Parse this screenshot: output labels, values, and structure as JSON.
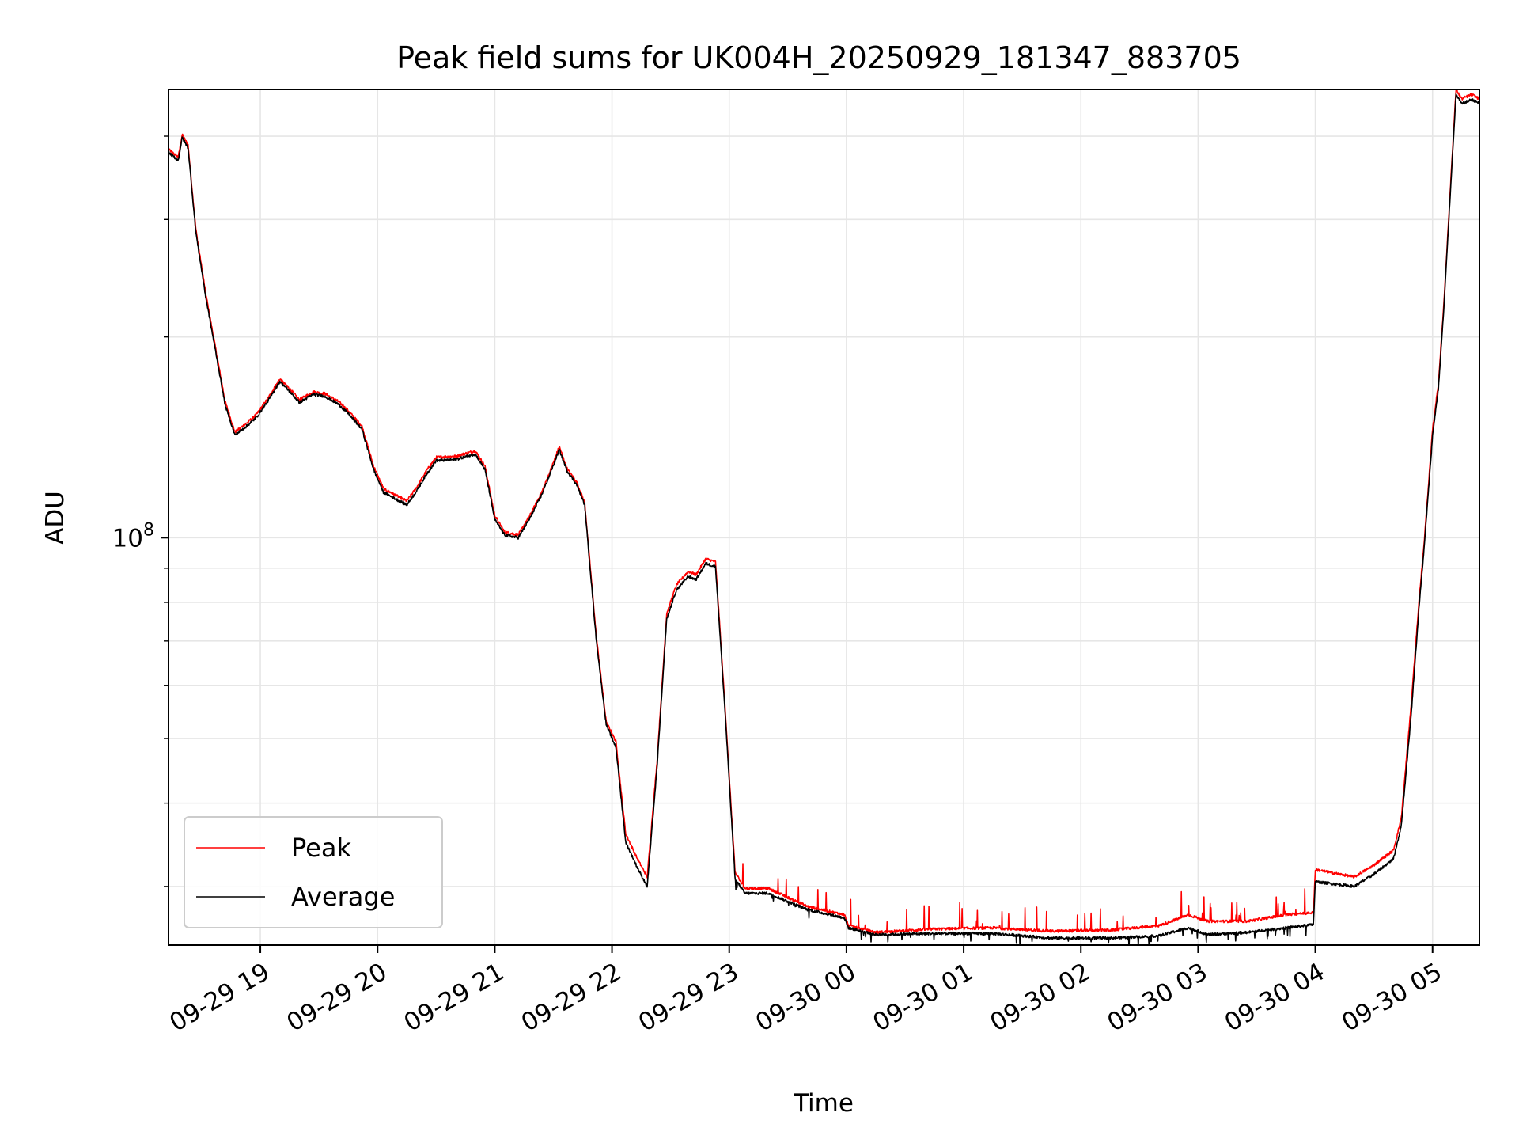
{
  "chart_data": {
    "type": "line",
    "title": "Peak field sums for UK004H_20250929_181347_883705",
    "xlabel": "Time",
    "ylabel": "ADU",
    "yscale": "log",
    "ylim": [
      24500000,
      470000000
    ],
    "xlim": [
      "2025-09-29 18:13",
      "2025-09-30 05:24"
    ],
    "grid": true,
    "legend_position": "lower-left",
    "x_ticks": [
      {
        "t": "2025-09-29 19:00",
        "label": "09-29 19"
      },
      {
        "t": "2025-09-29 20:00",
        "label": "09-29 20"
      },
      {
        "t": "2025-09-29 21:00",
        "label": "09-29 21"
      },
      {
        "t": "2025-09-29 22:00",
        "label": "09-29 22"
      },
      {
        "t": "2025-09-29 23:00",
        "label": "09-29 23"
      },
      {
        "t": "2025-09-30 00:00",
        "label": "09-30 00"
      },
      {
        "t": "2025-09-30 01:00",
        "label": "09-30 01"
      },
      {
        "t": "2025-09-30 02:00",
        "label": "09-30 02"
      },
      {
        "t": "2025-09-30 03:00",
        "label": "09-30 03"
      },
      {
        "t": "2025-09-30 04:00",
        "label": "09-30 04"
      },
      {
        "t": "2025-09-30 05:00",
        "label": "09-30 05"
      }
    ],
    "y_ticks": [
      {
        "value": 100000000,
        "base": "10",
        "exponent": "8"
      }
    ],
    "y_minor_ticks": [
      30000000,
      40000000,
      50000000,
      60000000,
      70000000,
      80000000,
      90000000,
      200000000,
      300000000,
      400000000
    ],
    "series": [
      {
        "name": "Peak",
        "color": "#ff0000",
        "noise": "spiky_up",
        "points": [
          [
            "2025-09-29 18:13",
            382000000
          ],
          [
            "2025-09-29 18:18",
            372000000
          ],
          [
            "2025-09-29 18:20",
            402000000
          ],
          [
            "2025-09-29 18:23",
            388000000
          ],
          [
            "2025-09-29 18:27",
            290000000
          ],
          [
            "2025-09-29 18:32",
            233000000
          ],
          [
            "2025-09-29 18:37",
            193000000
          ],
          [
            "2025-09-29 18:42",
            160000000
          ],
          [
            "2025-09-29 18:47",
            144000000
          ],
          [
            "2025-09-29 18:53",
            148500000
          ],
          [
            "2025-09-29 18:58",
            153000000
          ],
          [
            "2025-09-29 19:04",
            162000000
          ],
          [
            "2025-09-29 19:10",
            173000000
          ],
          [
            "2025-09-29 19:16",
            166000000
          ],
          [
            "2025-09-29 19:20",
            161000000
          ],
          [
            "2025-09-29 19:27",
            165500000
          ],
          [
            "2025-09-29 19:33",
            164500000
          ],
          [
            "2025-09-29 19:40",
            160000000
          ],
          [
            "2025-09-29 19:45",
            155000000
          ],
          [
            "2025-09-29 19:52",
            147000000
          ],
          [
            "2025-09-29 19:58",
            128000000
          ],
          [
            "2025-09-29 20:03",
            118500000
          ],
          [
            "2025-09-29 20:10",
            115500000
          ],
          [
            "2025-09-29 20:15",
            113500000
          ],
          [
            "2025-09-29 20:20",
            119000000
          ],
          [
            "2025-09-29 20:25",
            126000000
          ],
          [
            "2025-09-29 20:30",
            132000000
          ],
          [
            "2025-09-29 20:40",
            132500000
          ],
          [
            "2025-09-29 20:50",
            135000000
          ],
          [
            "2025-09-29 20:55",
            128000000
          ],
          [
            "2025-09-29 21:00",
            108000000
          ],
          [
            "2025-09-29 21:05",
            102000000
          ],
          [
            "2025-09-29 21:12",
            101000000
          ],
          [
            "2025-09-29 21:18",
            108000000
          ],
          [
            "2025-09-29 21:24",
            117000000
          ],
          [
            "2025-09-29 21:28",
            125000000
          ],
          [
            "2025-09-29 21:33",
            137000000
          ],
          [
            "2025-09-29 21:37",
            127000000
          ],
          [
            "2025-09-29 21:42",
            121000000
          ],
          [
            "2025-09-29 21:46",
            113000000
          ],
          [
            "2025-09-29 21:52",
            71000000
          ],
          [
            "2025-09-29 21:57",
            53000000
          ],
          [
            "2025-09-29 22:02",
            49500000
          ],
          [
            "2025-09-29 22:07",
            36000000
          ],
          [
            "2025-09-29 22:13",
            33000000
          ],
          [
            "2025-09-29 22:18",
            31000000
          ],
          [
            "2025-09-29 22:23",
            46000000
          ],
          [
            "2025-09-29 22:28",
            77000000
          ],
          [
            "2025-09-29 22:33",
            85000000
          ],
          [
            "2025-09-29 22:39",
            89000000
          ],
          [
            "2025-09-29 22:43",
            88000000
          ],
          [
            "2025-09-29 22:48",
            93000000
          ],
          [
            "2025-09-29 22:53",
            92000000
          ],
          [
            "2025-09-29 22:58",
            55000000
          ],
          [
            "2025-09-29 23:03",
            31500000
          ],
          [
            "2025-09-29 23:08",
            29800000
          ],
          [
            "2025-09-29 23:20",
            29800000
          ],
          [
            "2025-09-29 23:40",
            28000000
          ],
          [
            "2025-09-29 23:59",
            27200000
          ],
          [
            "2025-09-30 00:01",
            26200000
          ],
          [
            "2025-09-30 00:15",
            25600000
          ],
          [
            "2025-09-30 00:45",
            25900000
          ],
          [
            "2025-09-30 01:15",
            26000000
          ],
          [
            "2025-09-30 01:45",
            25700000
          ],
          [
            "2025-09-30 02:15",
            25800000
          ],
          [
            "2025-09-30 02:40",
            26200000
          ],
          [
            "2025-09-30 02:55",
            27200000
          ],
          [
            "2025-09-30 03:05",
            26600000
          ],
          [
            "2025-09-30 03:25",
            26600000
          ],
          [
            "2025-09-30 03:45",
            27200000
          ],
          [
            "2025-09-30 03:59",
            27400000
          ],
          [
            "2025-09-30 04:00",
            31800000
          ],
          [
            "2025-09-30 04:20",
            31000000
          ],
          [
            "2025-09-30 04:30",
            32300000
          ],
          [
            "2025-09-30 04:40",
            34000000
          ],
          [
            "2025-09-30 04:44",
            38000000
          ],
          [
            "2025-09-30 04:49",
            56000000
          ],
          [
            "2025-09-30 04:53",
            80000000
          ],
          [
            "2025-09-30 04:56",
            101000000
          ],
          [
            "2025-09-30 05:00",
            145000000
          ],
          [
            "2025-09-30 05:02",
            162000000
          ],
          [
            "2025-09-30 05:03",
            170000000
          ],
          [
            "2025-09-30 05:06",
            230000000
          ],
          [
            "2025-09-30 05:09",
            330000000
          ],
          [
            "2025-09-30 05:12",
            470000000
          ],
          [
            "2025-09-30 05:15",
            455000000
          ],
          [
            "2025-09-30 05:20",
            462000000
          ],
          [
            "2025-09-30 05:24",
            455000000
          ]
        ]
      },
      {
        "name": "Average",
        "color": "#000000",
        "noise": "spiky_down",
        "points": [
          [
            "2025-09-29 18:13",
            378000000
          ],
          [
            "2025-09-29 18:18",
            368000000
          ],
          [
            "2025-09-29 18:20",
            398000000
          ],
          [
            "2025-09-29 18:23",
            384000000
          ],
          [
            "2025-09-29 18:27",
            287000000
          ],
          [
            "2025-09-29 18:32",
            230000000
          ],
          [
            "2025-09-29 18:37",
            191000000
          ],
          [
            "2025-09-29 18:42",
            158000000
          ],
          [
            "2025-09-29 18:47",
            142500000
          ],
          [
            "2025-09-29 18:53",
            147000000
          ],
          [
            "2025-09-29 18:58",
            151500000
          ],
          [
            "2025-09-29 19:04",
            160500000
          ],
          [
            "2025-09-29 19:10",
            171500000
          ],
          [
            "2025-09-29 19:16",
            164500000
          ],
          [
            "2025-09-29 19:20",
            159500000
          ],
          [
            "2025-09-29 19:27",
            164000000
          ],
          [
            "2025-09-29 19:33",
            163000000
          ],
          [
            "2025-09-29 19:40",
            158500000
          ],
          [
            "2025-09-29 19:45",
            153500000
          ],
          [
            "2025-09-29 19:52",
            145500000
          ],
          [
            "2025-09-29 19:58",
            126500000
          ],
          [
            "2025-09-29 20:03",
            117000000
          ],
          [
            "2025-09-29 20:10",
            114000000
          ],
          [
            "2025-09-29 20:15",
            112000000
          ],
          [
            "2025-09-29 20:20",
            117500000
          ],
          [
            "2025-09-29 20:25",
            124500000
          ],
          [
            "2025-09-29 20:30",
            130500000
          ],
          [
            "2025-09-29 20:40",
            131000000
          ],
          [
            "2025-09-29 20:50",
            133500000
          ],
          [
            "2025-09-29 20:55",
            126500000
          ],
          [
            "2025-09-29 21:00",
            106500000
          ],
          [
            "2025-09-29 21:05",
            101000000
          ],
          [
            "2025-09-29 21:12",
            100000000
          ],
          [
            "2025-09-29 21:18",
            107000000
          ],
          [
            "2025-09-29 21:24",
            116000000
          ],
          [
            "2025-09-29 21:28",
            124000000
          ],
          [
            "2025-09-29 21:33",
            135500000
          ],
          [
            "2025-09-29 21:37",
            126000000
          ],
          [
            "2025-09-29 21:42",
            120000000
          ],
          [
            "2025-09-29 21:46",
            112000000
          ],
          [
            "2025-09-29 21:52",
            70000000
          ],
          [
            "2025-09-29 21:57",
            52500000
          ],
          [
            "2025-09-29 22:02",
            48500000
          ],
          [
            "2025-09-29 22:07",
            35000000
          ],
          [
            "2025-09-29 22:13",
            32000000
          ],
          [
            "2025-09-29 22:18",
            30000000
          ],
          [
            "2025-09-29 22:23",
            45000000
          ],
          [
            "2025-09-29 22:28",
            75500000
          ],
          [
            "2025-09-29 22:33",
            83500000
          ],
          [
            "2025-09-29 22:39",
            87500000
          ],
          [
            "2025-09-29 22:43",
            86500000
          ],
          [
            "2025-09-29 22:48",
            91500000
          ],
          [
            "2025-09-29 22:53",
            90500000
          ],
          [
            "2025-09-29 22:58",
            54000000
          ],
          [
            "2025-09-29 23:03",
            30800000
          ],
          [
            "2025-09-29 23:08",
            29300000
          ],
          [
            "2025-09-29 23:20",
            29300000
          ],
          [
            "2025-09-29 23:40",
            27700000
          ],
          [
            "2025-09-29 23:59",
            26900000
          ],
          [
            "2025-09-30 00:01",
            26000000
          ],
          [
            "2025-09-30 00:15",
            25400000
          ],
          [
            "2025-09-30 00:45",
            25500000
          ],
          [
            "2025-09-30 01:15",
            25500000
          ],
          [
            "2025-09-30 01:45",
            25100000
          ],
          [
            "2025-09-30 02:15",
            25100000
          ],
          [
            "2025-09-30 02:40",
            25300000
          ],
          [
            "2025-09-30 02:55",
            26000000
          ],
          [
            "2025-09-30 03:05",
            25400000
          ],
          [
            "2025-09-30 03:25",
            25600000
          ],
          [
            "2025-09-30 03:45",
            26000000
          ],
          [
            "2025-09-30 03:59",
            26300000
          ],
          [
            "2025-09-30 04:00",
            30500000
          ],
          [
            "2025-09-30 04:20",
            30000000
          ],
          [
            "2025-09-30 04:30",
            31300000
          ],
          [
            "2025-09-30 04:40",
            33000000
          ],
          [
            "2025-09-30 04:44",
            37000000
          ],
          [
            "2025-09-30 04:49",
            54000000
          ],
          [
            "2025-09-30 04:53",
            78000000
          ],
          [
            "2025-09-30 04:56",
            99000000
          ],
          [
            "2025-09-30 05:00",
            142000000
          ],
          [
            "2025-09-30 05:02",
            159000000
          ],
          [
            "2025-09-30 05:03",
            167000000
          ],
          [
            "2025-09-30 05:06",
            226000000
          ],
          [
            "2025-09-30 05:09",
            325000000
          ],
          [
            "2025-09-30 05:12",
            462000000
          ],
          [
            "2025-09-30 05:15",
            447000000
          ],
          [
            "2025-09-30 05:20",
            454000000
          ],
          [
            "2025-09-30 05:24",
            448000000
          ]
        ]
      }
    ]
  }
}
